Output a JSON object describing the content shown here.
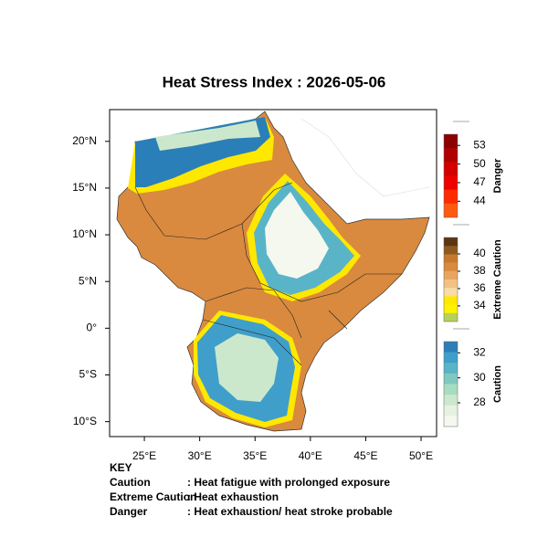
{
  "title": "Heat Stress Index : 2026-05-06",
  "map": {
    "xlim": [
      21.86,
      51.4
    ],
    "ylim": [
      -11.6,
      23.4
    ],
    "xticks": [
      {
        "value": 25,
        "label": "25°E"
      },
      {
        "value": 30,
        "label": "30°E"
      },
      {
        "value": 35,
        "label": "35°E"
      },
      {
        "value": 40,
        "label": "40°E"
      },
      {
        "value": 45,
        "label": "45°E"
      },
      {
        "value": 50,
        "label": "50°E"
      }
    ],
    "yticks": [
      {
        "value": 20,
        "label": "20°N"
      },
      {
        "value": 15,
        "label": "15°N"
      },
      {
        "value": 10,
        "label": "10°N"
      },
      {
        "value": 5,
        "label": "5°N"
      },
      {
        "value": 0,
        "label": "0°"
      },
      {
        "value": -5,
        "label": "5°S"
      },
      {
        "value": -10,
        "label": "10°S"
      }
    ]
  },
  "colorbars": [
    {
      "title": "Danger",
      "lim": [
        41.4,
        54.8
      ],
      "ticks": [
        53,
        50,
        47,
        44
      ],
      "colors": [
        "#8b0000",
        "#b00000",
        "#d40000",
        "#ee0000",
        "#ff2a00",
        "#ff5a10"
      ]
    },
    {
      "title": "Extreme Caution",
      "lim": [
        32.2,
        41.9
      ],
      "ticks": [
        40,
        38,
        36,
        34
      ],
      "colors": [
        "#5e3410",
        "#8c5a1e",
        "#c8782e",
        "#d98a3e",
        "#e9a55e",
        "#f2c284",
        "#f7dca6",
        "#ffe800",
        "#fff200",
        "#b5d25a"
      ]
    },
    {
      "title": "Caution",
      "lim": [
        26.1,
        32.9
      ],
      "ticks": [
        32,
        30,
        28
      ],
      "colors": [
        "#2b7fb8",
        "#3f9fca",
        "#5ab4c8",
        "#80c8c0",
        "#a8dcc0",
        "#cce8cc",
        "#e5f2e0",
        "#f5f8ee"
      ]
    }
  ],
  "key": {
    "heading": "KEY",
    "rows": [
      {
        "term": "Caution",
        "description": ": Heat fatigue with prolonged exposure"
      },
      {
        "term": "Extreme Caution",
        "description": ": Heat exhaustion"
      },
      {
        "term": "Danger",
        "description": ": Heat exhaustion/ heat stroke probable"
      }
    ]
  }
}
